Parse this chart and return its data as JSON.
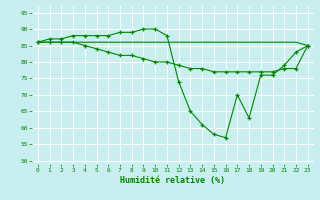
{
  "xlabel": "Humidité relative (%)",
  "bg_color": "#c8eef0",
  "grid_color": "#aadddd",
  "line_color": "#008800",
  "xlim": [
    -0.5,
    23.5
  ],
  "ylim": [
    49,
    97
  ],
  "yticks": [
    50,
    55,
    60,
    65,
    70,
    75,
    80,
    85,
    90,
    95
  ],
  "xticks": [
    0,
    1,
    2,
    3,
    4,
    5,
    6,
    7,
    8,
    9,
    10,
    11,
    12,
    13,
    14,
    15,
    16,
    17,
    18,
    19,
    20,
    21,
    22,
    23
  ],
  "line1_x": [
    0,
    1,
    2,
    3,
    4,
    5,
    6,
    7,
    8,
    9,
    10,
    11,
    12,
    13,
    14,
    15,
    16,
    17,
    18,
    19,
    20,
    21,
    22,
    23
  ],
  "line1_y": [
    86,
    87,
    87,
    88,
    88,
    88,
    88,
    89,
    89,
    90,
    90,
    88,
    74,
    65,
    61,
    58,
    57,
    70,
    63,
    76,
    76,
    79,
    83,
    85
  ],
  "line2_x": [
    0,
    1,
    2,
    3,
    4,
    5,
    6,
    7,
    8,
    9,
    10,
    11,
    12,
    13,
    14,
    15,
    16,
    17,
    18,
    19,
    20,
    21,
    22,
    23
  ],
  "line2_y": [
    86,
    86,
    86,
    86,
    85,
    84,
    83,
    82,
    82,
    81,
    80,
    80,
    79,
    78,
    78,
    77,
    77,
    77,
    77,
    77,
    77,
    78,
    78,
    85
  ],
  "line3_x": [
    0,
    1,
    2,
    3,
    4,
    5,
    6,
    7,
    8,
    9,
    10,
    11,
    12,
    13,
    14,
    15,
    16,
    17,
    18,
    19,
    20,
    21,
    22,
    23
  ],
  "line3_y": [
    86,
    86,
    86,
    86,
    86,
    86,
    86,
    86,
    86,
    86,
    86,
    86,
    86,
    86,
    86,
    86,
    86,
    86,
    86,
    86,
    86,
    86,
    86,
    85
  ]
}
